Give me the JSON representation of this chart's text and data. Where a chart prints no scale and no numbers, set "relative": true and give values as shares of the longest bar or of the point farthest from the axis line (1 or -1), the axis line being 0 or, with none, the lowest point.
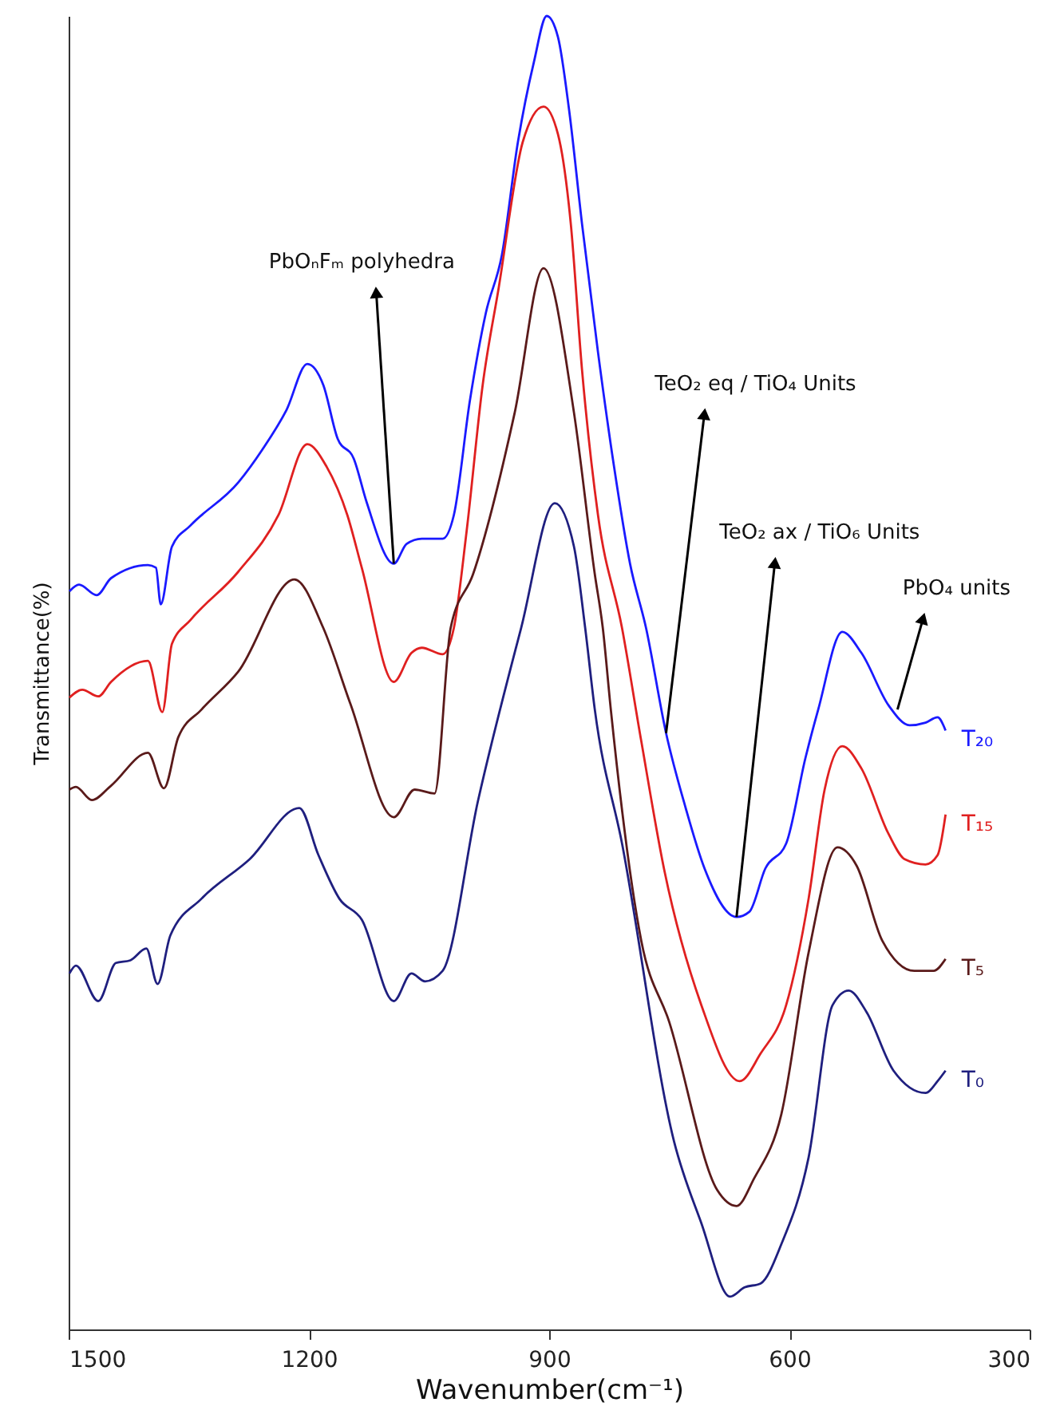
{
  "chart_data": {
    "type": "line",
    "xlabel": "Wavenumber(cm⁻¹)",
    "ylabel": "Transmittance(%)",
    "relative": true,
    "xlim": [
      1500,
      300
    ],
    "xticks": [
      1500,
      1200,
      900,
      600,
      300
    ],
    "series": [
      {
        "name": "T₂₀",
        "color": "#1a1aff",
        "x": [
          1499,
          1487,
          1465,
          1447,
          1401,
          1391,
          1385,
          1371,
          1348,
          1288,
          1258,
          1228,
          1202,
          1182,
          1164,
          1144,
          1128,
          1094,
          1078,
          1059,
          1033,
          1019,
          999,
          979,
          959,
          939,
          919,
          903,
          889,
          875,
          859,
          839,
          819,
          799,
          779,
          754,
          730,
          706,
          666,
          650,
          630,
          604,
          580,
          564,
          534,
          510,
          476,
          450,
          430,
          415,
          405
        ],
        "values": [
          0.562,
          0.567,
          0.559,
          0.572,
          0.582,
          0.58,
          0.552,
          0.596,
          0.612,
          0.645,
          0.67,
          0.7,
          0.735,
          0.719,
          0.678,
          0.663,
          0.63,
          0.583,
          0.598,
          0.602,
          0.602,
          0.62,
          0.707,
          0.774,
          0.818,
          0.904,
          0.965,
          1.0,
          0.984,
          0.928,
          0.842,
          0.744,
          0.657,
          0.583,
          0.534,
          0.454,
          0.398,
          0.351,
          0.314,
          0.318,
          0.351,
          0.37,
          0.435,
          0.472,
          0.531,
          0.515,
          0.475,
          0.46,
          0.462,
          0.466,
          0.456
        ]
      },
      {
        "name": "T₁₅",
        "color": "#e02020",
        "x": [
          1499,
          1483,
          1463,
          1447,
          1401,
          1383,
          1371,
          1348,
          1288,
          1238,
          1202,
          1178,
          1152,
          1134,
          1094,
          1072,
          1059,
          1033,
          1019,
          1003,
          983,
          963,
          933,
          907,
          889,
          873,
          859,
          839,
          809,
          785,
          756,
          710,
          662,
          636,
          604,
          576,
          556,
          534,
          510,
          476,
          456,
          430,
          415,
          405
        ],
        "values": [
          0.481,
          0.487,
          0.482,
          0.493,
          0.509,
          0.47,
          0.522,
          0.54,
          0.577,
          0.62,
          0.674,
          0.657,
          0.62,
          0.58,
          0.493,
          0.515,
          0.519,
          0.514,
          0.534,
          0.608,
          0.719,
          0.793,
          0.904,
          0.931,
          0.91,
          0.842,
          0.731,
          0.62,
          0.534,
          0.448,
          0.349,
          0.247,
          0.189,
          0.21,
          0.247,
          0.328,
          0.411,
          0.444,
          0.427,
          0.377,
          0.358,
          0.354,
          0.361,
          0.392
        ]
      },
      {
        "name": "T₅",
        "color": "#5a1a1a",
        "x": [
          1499,
          1491,
          1471,
          1447,
          1401,
          1381,
          1363,
          1334,
          1288,
          1218,
          1182,
          1148,
          1094,
          1068,
          1043,
          1023,
          995,
          943,
          907,
          869,
          843,
          833,
          823,
          785,
          750,
          690,
          666,
          644,
          610,
          576,
          540,
          516,
          484,
          444,
          420,
          405
        ],
        "values": [
          0.411,
          0.413,
          0.403,
          0.414,
          0.439,
          0.412,
          0.451,
          0.472,
          0.501,
          0.571,
          0.534,
          0.476,
          0.39,
          0.411,
          0.408,
          0.534,
          0.575,
          0.698,
          0.808,
          0.698,
          0.575,
          0.534,
          0.472,
          0.296,
          0.234,
          0.106,
          0.094,
          0.115,
          0.164,
          0.287,
          0.367,
          0.353,
          0.296,
          0.273,
          0.273,
          0.282
        ]
      },
      {
        "name": "T₀",
        "color": "#1f1f7f",
        "x": [
          1499,
          1491,
          1463,
          1441,
          1423,
          1403,
          1389,
          1373,
          1334,
          1274,
          1212,
          1188,
          1162,
          1134,
          1094,
          1072,
          1055,
          1033,
          989,
          935,
          893,
          869,
          855,
          843,
          809,
          744,
          710,
          674,
          656,
          636,
          610,
          576,
          546,
          526,
          504,
          470,
          430,
          415,
          405
        ],
        "values": [
          0.271,
          0.277,
          0.25,
          0.279,
          0.281,
          0.29,
          0.263,
          0.3,
          0.328,
          0.358,
          0.397,
          0.361,
          0.328,
          0.312,
          0.25,
          0.271,
          0.265,
          0.273,
          0.402,
          0.534,
          0.629,
          0.596,
          0.534,
          0.472,
          0.37,
          0.143,
          0.081,
          0.025,
          0.032,
          0.035,
          0.065,
          0.131,
          0.247,
          0.258,
          0.242,
          0.197,
          0.18,
          0.189,
          0.197
        ]
      }
    ],
    "annotations": [
      {
        "text": "PbOₙFₘ polyhedra",
        "x": 1094,
        "y": 0.583
      },
      {
        "text": "TeO₂ eq / TiO₄ Units",
        "x": 754,
        "y": 0.454
      },
      {
        "text": "TeO₂ ax / TiO₆ Units",
        "x": 666,
        "y": 0.314
      },
      {
        "text": "PbO₄ units",
        "x": 465,
        "y": 0.472
      }
    ]
  }
}
